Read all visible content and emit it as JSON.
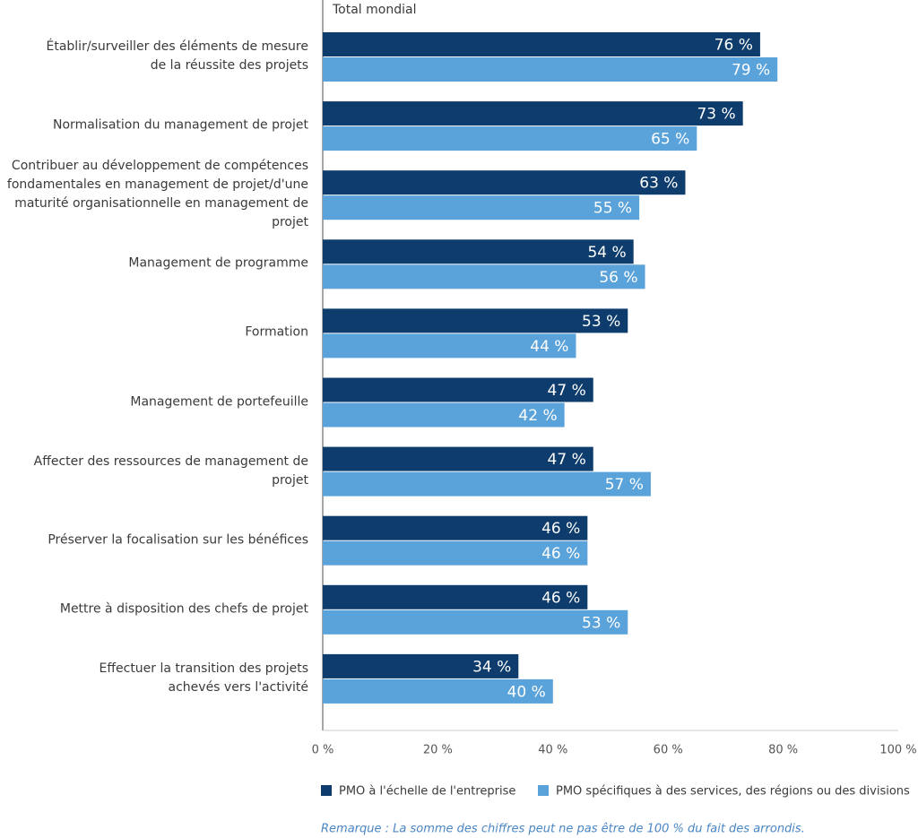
{
  "chart_data": {
    "type": "bar",
    "orientation": "horizontal",
    "title": "Total mondial",
    "categories": [
      "Établir/surveiller des éléments de mesure\nde la réussite des projets",
      "Normalisation du management de projet",
      "Contribuer au développement de compétences\nfondamentales en management de projet/d'une\nmaturité organisationnelle en management de projet",
      "Management de programme",
      "Formation",
      "Management de portefeuille",
      "Affecter des ressources de management de projet",
      "Préserver la focalisation sur les bénéfices",
      "Mettre à disposition des chefs de projet",
      "Effectuer la transition des projets\nachevés vers l'activité"
    ],
    "series": [
      {
        "name": "PMO à l'échelle de l'entreprise",
        "color": "#0e3c6c",
        "values": [
          76,
          73,
          63,
          54,
          53,
          47,
          47,
          46,
          46,
          34
        ],
        "value_labels": [
          "76 %",
          "73 %",
          "63 %",
          "54 %",
          "53 %",
          "47 %",
          "47 %",
          "46 %",
          "46 %",
          "34 %"
        ]
      },
      {
        "name": "PMO spécifiques à des services, des régions ou des divisions",
        "color": "#5aa2da",
        "values": [
          79,
          65,
          55,
          56,
          44,
          42,
          57,
          46,
          53,
          40
        ],
        "value_labels": [
          "79 %",
          "65 %",
          "55 %",
          "56 %",
          "44 %",
          "42 %",
          "57 %",
          "46 %",
          "53 %",
          "40 %"
        ]
      }
    ],
    "xlim": [
      0,
      100
    ],
    "xticks": [
      {
        "value": 0,
        "label": "0 %"
      },
      {
        "value": 20,
        "label": "20 %"
      },
      {
        "value": 40,
        "label": "40 %"
      },
      {
        "value": 60,
        "label": "60 %"
      },
      {
        "value": 80,
        "label": "80 %"
      },
      {
        "value": 100,
        "label": "100 %"
      }
    ],
    "note": "Remarque : La somme des chiffres peut ne pas être de 100 % du fait des arrondis."
  }
}
